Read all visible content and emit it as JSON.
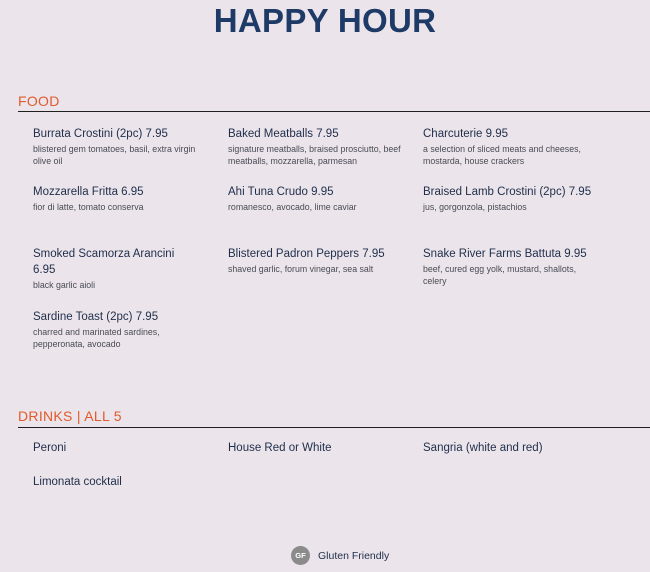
{
  "title": "HAPPY HOUR",
  "food": {
    "heading": "FOOD",
    "items": [
      {
        "name": "Burrata Crostini (2pc) 7.95",
        "desc": "blistered gem tomatoes, basil, extra virgin olive oil"
      },
      {
        "name": "Baked Meatballs 7.95",
        "desc": "signature meatballs, braised prosciutto, beef meatballs, mozzarella, parmesan"
      },
      {
        "name": "Charcuterie 9.95",
        "desc": "a selection of sliced meats and cheeses, mostarda, house crackers"
      },
      {
        "name": "Mozzarella Fritta 6.95",
        "desc": "fior di latte, tomato conserva"
      },
      {
        "name": "Ahi Tuna Crudo 9.95",
        "desc": "romanesco, avocado, lime caviar"
      },
      {
        "name": "Braised Lamb Crostini (2pc) 7.95",
        "desc": "jus, gorgonzola, pistachios"
      },
      {
        "name": "Smoked Scamorza Arancini 6.95",
        "desc": "black garlic aioli"
      },
      {
        "name": "Blistered Padron Peppers 7.95",
        "desc": "shaved garlic, forum vinegar, sea salt"
      },
      {
        "name": "Snake River Farms Battuta 9.95",
        "desc": "beef, cured egg yolk, mustard, shallots, celery"
      },
      {
        "name": "Sardine Toast (2pc) 7.95",
        "desc": "charred and marinated sardines, pepperonata, avocado"
      }
    ]
  },
  "drinks": {
    "heading": "DRINKS | ALL 5",
    "items": [
      "Peroni",
      "House Red or White",
      "Sangria (white and red)",
      "Limonata cocktail"
    ]
  },
  "legend": {
    "icon_text": "GF",
    "label": "Gluten Friendly",
    "icon_color": "#8b8b8b"
  },
  "colors": {
    "background": "#ebe5eb",
    "title": "#1e3a66",
    "section_heading": "#e05a2b"
  }
}
